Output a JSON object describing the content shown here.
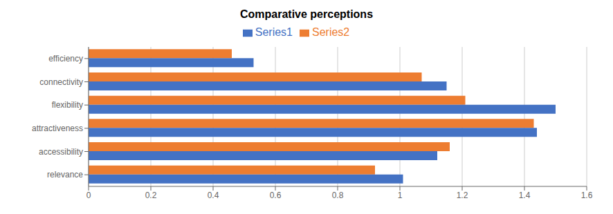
{
  "chart_data": {
    "type": "bar",
    "orientation": "horizontal",
    "title": "Comparative perceptions",
    "categories": [
      "relevance",
      "accessibility",
      "attractiveness",
      "flexibility",
      "connectivity",
      "efficiency"
    ],
    "series": [
      {
        "name": "Series2",
        "color": "#ED7D31",
        "values": [
          0.92,
          1.16,
          1.43,
          1.21,
          1.07,
          0.46
        ]
      },
      {
        "name": "Series1",
        "color": "#4472C4",
        "values": [
          1.01,
          1.12,
          1.44,
          1.5,
          1.15,
          0.53
        ]
      }
    ],
    "xlim": [
      0,
      1.6
    ],
    "xticks": [
      0,
      0.2,
      0.4,
      0.6,
      0.8,
      1.0,
      1.2,
      1.4,
      1.6
    ],
    "grid": true,
    "legend": "top"
  }
}
